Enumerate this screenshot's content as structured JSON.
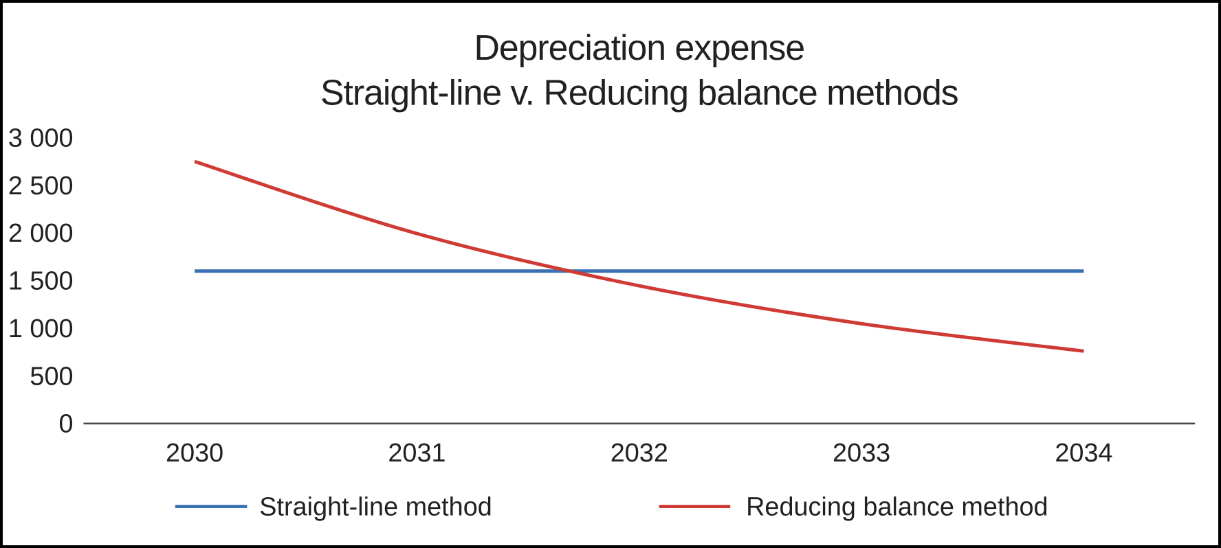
{
  "chart_data": {
    "type": "line",
    "title": "Depreciation expense",
    "subtitle": "Straight-line v. Reducing balance methods",
    "categories": [
      "2030",
      "2031",
      "2032",
      "2033",
      "2034"
    ],
    "series": [
      {
        "name": "Straight-line method",
        "color": "#3B70B4",
        "smooth": false,
        "values": [
          1600,
          1600,
          1600,
          1600,
          1600
        ]
      },
      {
        "name": "Reducing balance method",
        "color": "#CF3B34",
        "smooth": true,
        "values": [
          2750,
          1994,
          1446,
          1048,
          760
        ]
      }
    ],
    "xlabel": "",
    "ylabel": "",
    "ylim": [
      0,
      3000
    ],
    "y_tick_values": [
      0,
      500,
      1000,
      1500,
      2000,
      2500,
      3000
    ],
    "y_tick_labels": [
      "0",
      "500",
      "1 000",
      "1 500",
      "2 000",
      "2 500",
      "3 000"
    ],
    "grid": false,
    "legend_position": "bottom",
    "axis_line_color": "#474747",
    "text_color": "#212121"
  }
}
